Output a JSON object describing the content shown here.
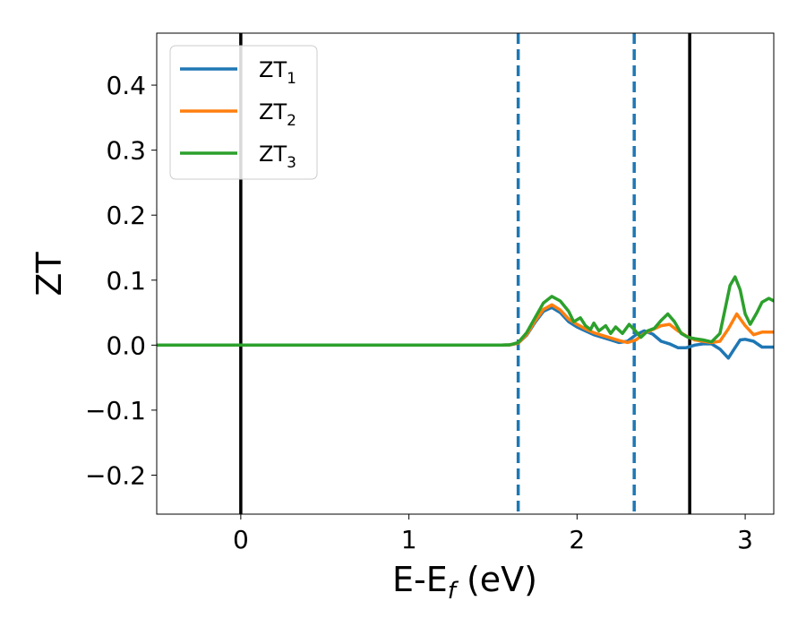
{
  "chart_data": {
    "type": "line",
    "xlabel": {
      "main": "E-E",
      "sub": "f",
      "rest": " (eV)"
    },
    "ylabel": "ZT",
    "xlim": [
      -0.5,
      3.17
    ],
    "ylim": [
      -0.26,
      0.48
    ],
    "xticks": [
      0,
      1,
      2,
      3
    ],
    "xtick_labels": [
      "0",
      "1",
      "2",
      "3"
    ],
    "yticks": [
      -0.2,
      -0.1,
      0.0,
      0.1,
      0.2,
      0.3,
      0.4
    ],
    "ytick_labels": [
      "−0.2",
      "−0.1",
      "0.0",
      "0.1",
      "0.2",
      "0.3",
      "0.4"
    ],
    "grid": false,
    "legend_position": "top-left",
    "vlines": [
      {
        "x": 0.0,
        "color": "#000000",
        "style": "solid"
      },
      {
        "x": 1.65,
        "color": "#1f77b4",
        "style": "dashed"
      },
      {
        "x": 2.34,
        "color": "#1f77b4",
        "style": "dashed"
      },
      {
        "x": 2.67,
        "color": "#000000",
        "style": "solid"
      }
    ],
    "series": [
      {
        "name": {
          "main": "ZT",
          "sub": "1"
        },
        "color": "#1f77b4",
        "x": [
          -0.5,
          1.55,
          1.6,
          1.65,
          1.7,
          1.75,
          1.8,
          1.85,
          1.9,
          1.95,
          2.0,
          2.05,
          2.1,
          2.15,
          2.2,
          2.25,
          2.3,
          2.35,
          2.4,
          2.45,
          2.5,
          2.55,
          2.6,
          2.65,
          2.7,
          2.75,
          2.8,
          2.85,
          2.9,
          2.93,
          2.97,
          3.0,
          3.05,
          3.1,
          3.17
        ],
        "values": [
          0,
          0,
          0.0005,
          0.003,
          0.015,
          0.035,
          0.052,
          0.058,
          0.05,
          0.036,
          0.028,
          0.022,
          0.016,
          0.012,
          0.008,
          0.004,
          0.006,
          0.016,
          0.022,
          0.017,
          0.006,
          0.002,
          -0.004,
          -0.004,
          0.0,
          0.002,
          0.002,
          -0.006,
          -0.02,
          -0.008,
          0.008,
          0.009,
          0.006,
          -0.003,
          -0.003
        ]
      },
      {
        "name": {
          "main": "ZT",
          "sub": "2"
        },
        "color": "#ff7f0e",
        "x": [
          -0.5,
          1.55,
          1.6,
          1.65,
          1.7,
          1.75,
          1.8,
          1.85,
          1.9,
          1.95,
          2.0,
          2.05,
          2.1,
          2.15,
          2.2,
          2.25,
          2.3,
          2.35,
          2.4,
          2.45,
          2.5,
          2.55,
          2.6,
          2.65,
          2.7,
          2.75,
          2.8,
          2.85,
          2.9,
          2.95,
          3.0,
          3.05,
          3.1,
          3.17
        ],
        "values": [
          0,
          0,
          0.0005,
          0.003,
          0.016,
          0.037,
          0.055,
          0.062,
          0.054,
          0.04,
          0.032,
          0.025,
          0.019,
          0.015,
          0.011,
          0.007,
          0.004,
          0.008,
          0.018,
          0.024,
          0.03,
          0.032,
          0.022,
          0.014,
          0.008,
          0.006,
          0.004,
          0.006,
          0.025,
          0.048,
          0.03,
          0.016,
          0.02,
          0.02
        ]
      },
      {
        "name": {
          "main": "ZT",
          "sub": "3"
        },
        "color": "#2ca02c",
        "x": [
          -0.5,
          1.55,
          1.6,
          1.65,
          1.7,
          1.75,
          1.8,
          1.85,
          1.9,
          1.95,
          1.98,
          2.02,
          2.05,
          2.08,
          2.1,
          2.13,
          2.17,
          2.2,
          2.23,
          2.27,
          2.31,
          2.34,
          2.38,
          2.42,
          2.46,
          2.5,
          2.54,
          2.58,
          2.62,
          2.66,
          2.7,
          2.75,
          2.8,
          2.85,
          2.88,
          2.91,
          2.94,
          2.97,
          3.0,
          3.03,
          3.07,
          3.1,
          3.14,
          3.17
        ],
        "values": [
          0,
          0,
          0.0005,
          0.004,
          0.019,
          0.042,
          0.065,
          0.075,
          0.068,
          0.052,
          0.036,
          0.042,
          0.03,
          0.024,
          0.034,
          0.022,
          0.03,
          0.018,
          0.028,
          0.018,
          0.032,
          0.024,
          0.012,
          0.022,
          0.026,
          0.038,
          0.048,
          0.036,
          0.018,
          0.012,
          0.01,
          0.008,
          0.005,
          0.018,
          0.055,
          0.092,
          0.105,
          0.085,
          0.048,
          0.032,
          0.05,
          0.066,
          0.072,
          0.068
        ]
      }
    ]
  }
}
